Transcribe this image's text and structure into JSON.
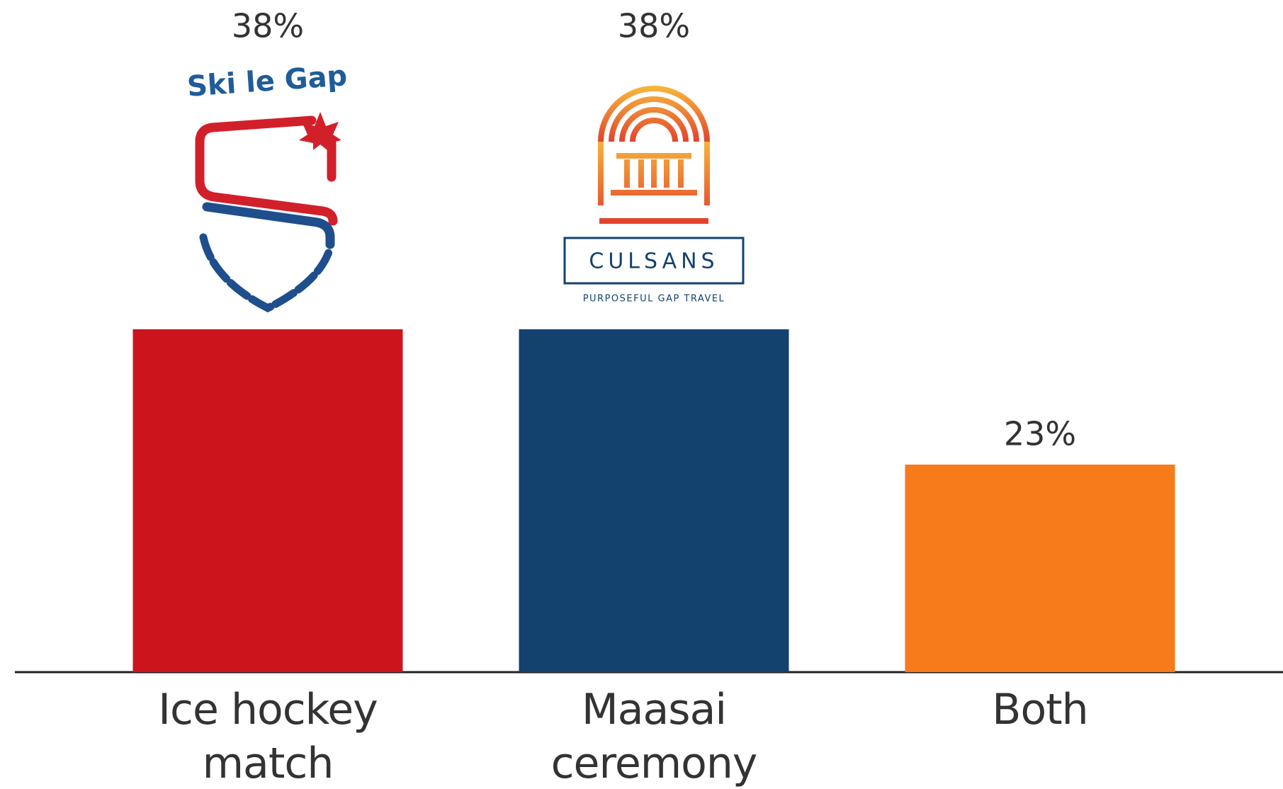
{
  "chart_data": {
    "type": "bar",
    "categories": [
      "Ice hockey match",
      "Maasai ceremony",
      "Both"
    ],
    "values": [
      38,
      38,
      23
    ],
    "value_labels": [
      "38%",
      "38%",
      "23%"
    ],
    "colors": [
      "#cc141d",
      "#13426f",
      "#f77a1b"
    ],
    "annotations": [
      "Ski le Gap",
      "CULSANS",
      "PURPOSEFUL GAP TRAVEL"
    ]
  }
}
